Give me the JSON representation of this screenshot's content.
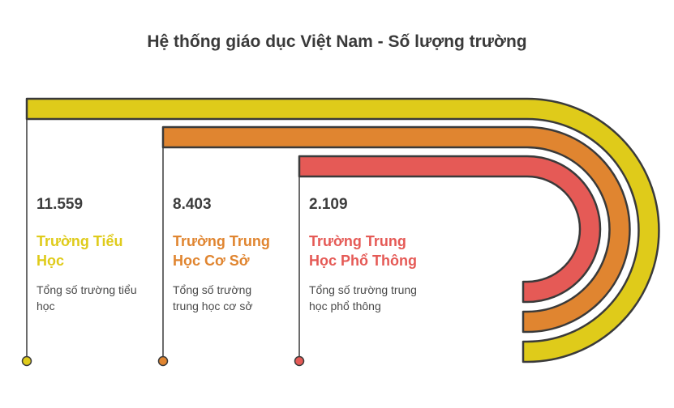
{
  "title": "Hệ thống giáo dục Việt Nam - Số lượng trường",
  "items": [
    {
      "value": "11.559",
      "label": "Trường Tiểu Học",
      "description": "Tổng số trường tiểu học",
      "color": "#dfcb1a"
    },
    {
      "value": "8.403",
      "label": "Trường Trung Học Cơ Sở",
      "description": "Tổng số trường trung học cơ sở",
      "color": "#e08530"
    },
    {
      "value": "2.109",
      "label": "Trường Trung Học Phổ Thông",
      "description": "Tổng số trường trung học phổ thông",
      "color": "#e55a56"
    }
  ],
  "stroke_color": "#3a3a3a"
}
